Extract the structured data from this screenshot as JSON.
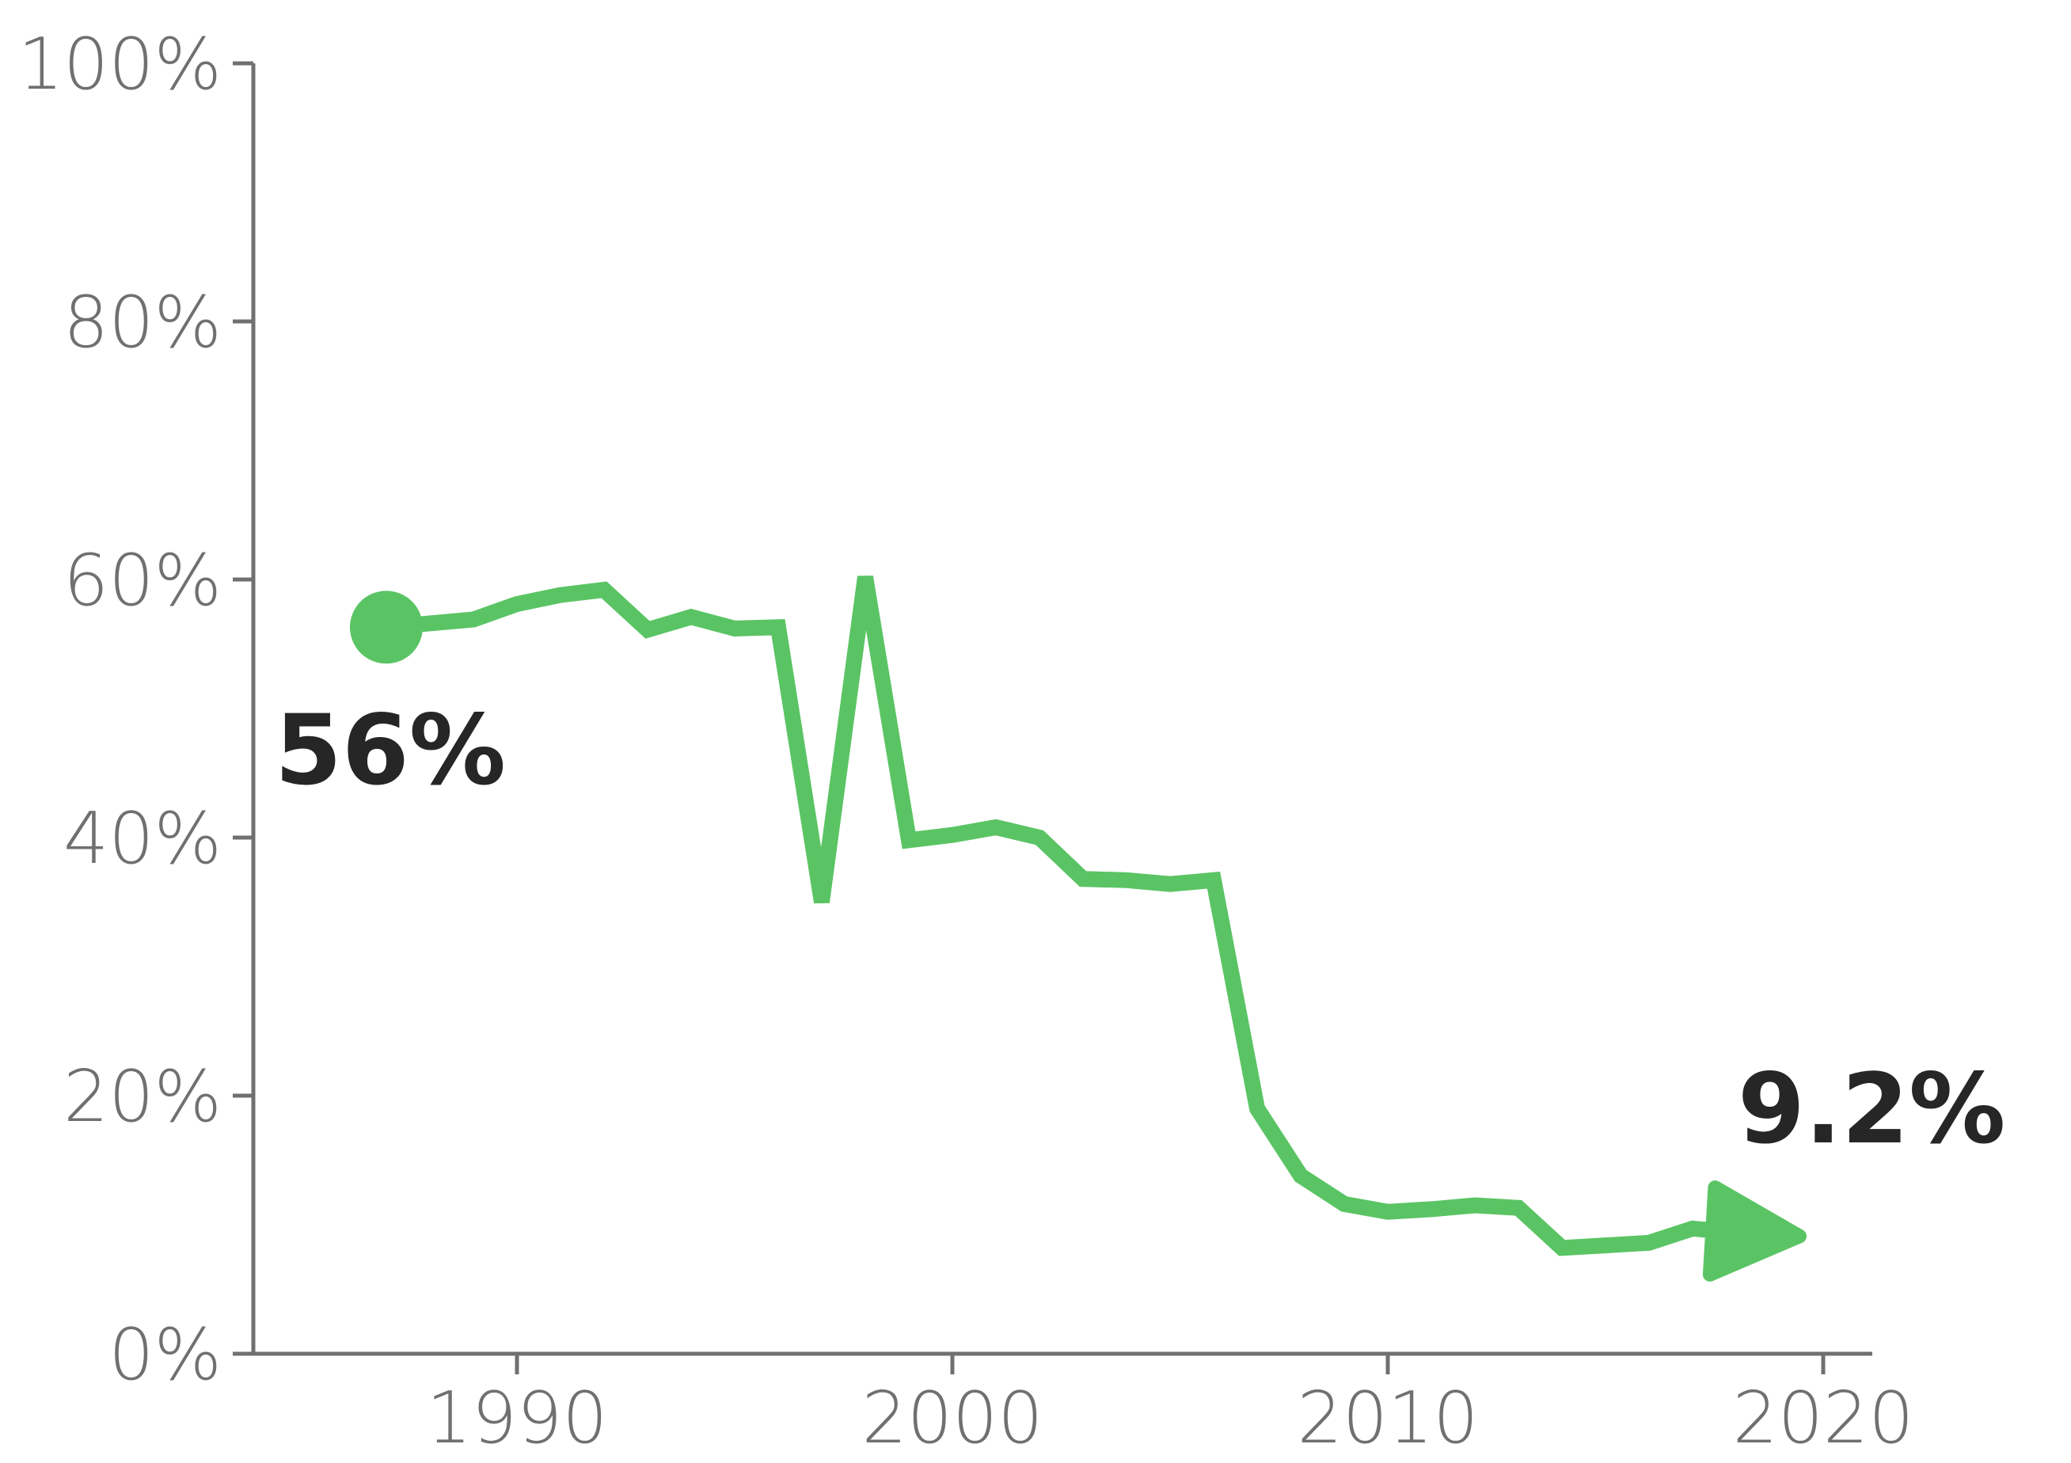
{
  "chart_data": {
    "type": "line",
    "title": "",
    "xlabel": "",
    "ylabel": "",
    "xlim": [
      1983.5,
      2020.8
    ],
    "ylim": [
      0,
      100
    ],
    "x_ticks": [
      1990,
      2000,
      2010,
      2020
    ],
    "x_tick_labels": [
      "1990",
      "2000",
      "2010",
      "2020"
    ],
    "y_ticks": [
      0,
      20,
      40,
      60,
      80,
      100
    ],
    "y_tick_labels": [
      "0%",
      "20%",
      "40%",
      "60%",
      "80%",
      "100%"
    ],
    "grid": false,
    "legend": "none",
    "colors": {
      "series": "#5ac464",
      "axis": "#707070",
      "label": "#262626"
    },
    "series": [
      {
        "x": [
          1987,
          1988,
          1989,
          1990,
          1991,
          1992,
          1993,
          1994,
          1995,
          1996,
          1997,
          1998,
          1999,
          2000,
          2001,
          2002,
          2003,
          2004,
          2005,
          2006,
          2007,
          2008,
          2009,
          2010,
          2011,
          2012,
          2013,
          2014,
          2015,
          2016,
          2017,
          2018,
          2019
        ],
        "y": [
          56.3,
          56.6,
          56.9,
          58.1,
          58.8,
          59.2,
          56.1,
          57.1,
          56.2,
          56.3,
          35.0,
          60.2,
          39.8,
          40.2,
          40.8,
          40.0,
          36.8,
          36.7,
          36.4,
          36.7,
          19.0,
          13.8,
          11.6,
          11.0,
          11.2,
          11.5,
          11.3,
          8.2,
          8.4,
          8.6,
          9.7,
          9.4,
          9.2
        ]
      }
    ],
    "annotations": {
      "start_label": "56%",
      "end_label": "9.2%"
    }
  }
}
